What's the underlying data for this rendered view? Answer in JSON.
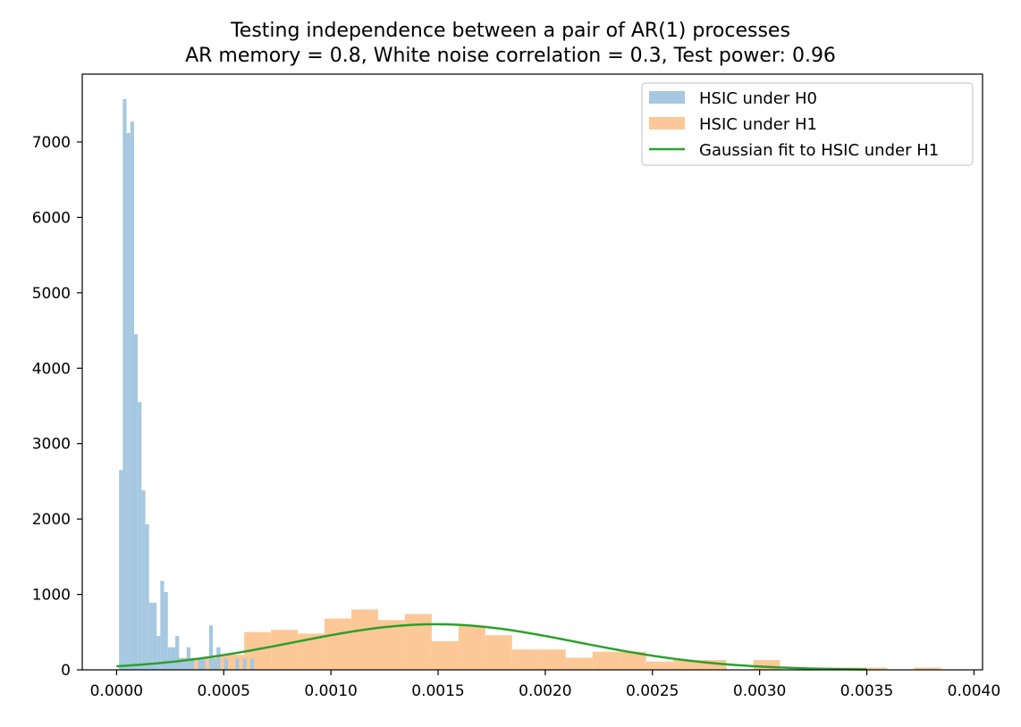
{
  "chart_data": {
    "type": "bar",
    "title": "Testing independence between a pair of AR(1) processes",
    "subtitle": "AR memory = 0.8, White noise correlation = 0.3, Test power: 0.96",
    "xlim": [
      -0.00016,
      0.00404
    ],
    "ylim": [
      0,
      7900
    ],
    "x_ticks": [
      0.0,
      0.0005,
      0.001,
      0.0015,
      0.002,
      0.0025,
      0.003,
      0.0035,
      0.004
    ],
    "x_tick_labels": [
      "0.0000",
      "0.0005",
      "0.0010",
      "0.0015",
      "0.0020",
      "0.0025",
      "0.0030",
      "0.0035",
      "0.0040"
    ],
    "y_ticks": [
      0,
      1000,
      2000,
      3000,
      4000,
      5000,
      6000,
      7000
    ],
    "y_tick_labels": [
      "0",
      "1000",
      "2000",
      "3000",
      "4000",
      "5000",
      "6000",
      "7000"
    ],
    "grid": false,
    "legend_position": "top-right",
    "series": [
      {
        "name": "HSIC under H0",
        "kind": "histogram",
        "color": "#a6c8e0",
        "bins": [
          [
            2.05e-05,
            2650
          ],
          [
            3.8e-05,
            7570
          ],
          [
            5.55e-05,
            7120
          ],
          [
            7.3e-05,
            7270
          ],
          [
            9.05e-05,
            4450
          ],
          [
            0.000108,
            3550
          ],
          [
            0.0001255,
            2380
          ],
          [
            0.000143,
            1930
          ],
          [
            0.0001605,
            890
          ],
          [
            0.000178,
            890
          ],
          [
            0.0001955,
            450
          ],
          [
            0.000213,
            1180
          ],
          [
            0.0002305,
            1030
          ],
          [
            0.000248,
            300
          ],
          [
            0.0002655,
            300
          ],
          [
            0.000283,
            450
          ],
          [
            0.0003005,
            150
          ],
          [
            0.000318,
            150
          ],
          [
            0.0003355,
            300
          ],
          [
            0.000353,
            150
          ],
          [
            0.0003705,
            0
          ],
          [
            0.000388,
            150
          ],
          [
            0.0004055,
            150
          ],
          [
            0.000423,
            0
          ],
          [
            0.0004405,
            590
          ],
          [
            0.000458,
            150
          ],
          [
            0.0004755,
            300
          ],
          [
            0.000493,
            0
          ],
          [
            0.0005105,
            150
          ],
          [
            0.000528,
            0
          ],
          [
            0.0005455,
            0
          ],
          [
            0.000563,
            150
          ],
          [
            0.0005805,
            0
          ],
          [
            0.000598,
            150
          ],
          [
            0.0006155,
            0
          ],
          [
            0.000633,
            150
          ]
        ],
        "bin_width": 1.75e-05
      },
      {
        "name": "HSIC under H1",
        "kind": "histogram",
        "color": "#fdc897",
        "bins": [
          [
            0.000283,
            160
          ],
          [
            0.000408,
            160
          ],
          [
            0.000533,
            200
          ],
          [
            0.000658,
            500
          ],
          [
            0.000783,
            530
          ],
          [
            0.000908,
            480
          ],
          [
            0.001033,
            680
          ],
          [
            0.001158,
            800
          ],
          [
            0.001283,
            660
          ],
          [
            0.001408,
            740
          ],
          [
            0.001533,
            380
          ],
          [
            0.001658,
            580
          ],
          [
            0.001783,
            460
          ],
          [
            0.001908,
            270
          ],
          [
            0.002033,
            270
          ],
          [
            0.002158,
            160
          ],
          [
            0.002283,
            240
          ],
          [
            0.002408,
            240
          ],
          [
            0.002533,
            110
          ],
          [
            0.002658,
            130
          ],
          [
            0.002783,
            130
          ],
          [
            0.002908,
            0
          ],
          [
            0.003033,
            130
          ],
          [
            0.003158,
            0
          ],
          [
            0.003283,
            0
          ],
          [
            0.003408,
            30
          ],
          [
            0.003533,
            30
          ],
          [
            0.003658,
            0
          ],
          [
            0.003783,
            30
          ]
        ],
        "bin_width": 0.000125
      },
      {
        "name": "Gaussian fit to HSIC under H1",
        "kind": "line",
        "color": "#2ca02c",
        "x_start": 0.0,
        "x_end": 0.0035,
        "mu": 0.00149,
        "sigma": 0.00066,
        "peak": 605
      }
    ]
  }
}
